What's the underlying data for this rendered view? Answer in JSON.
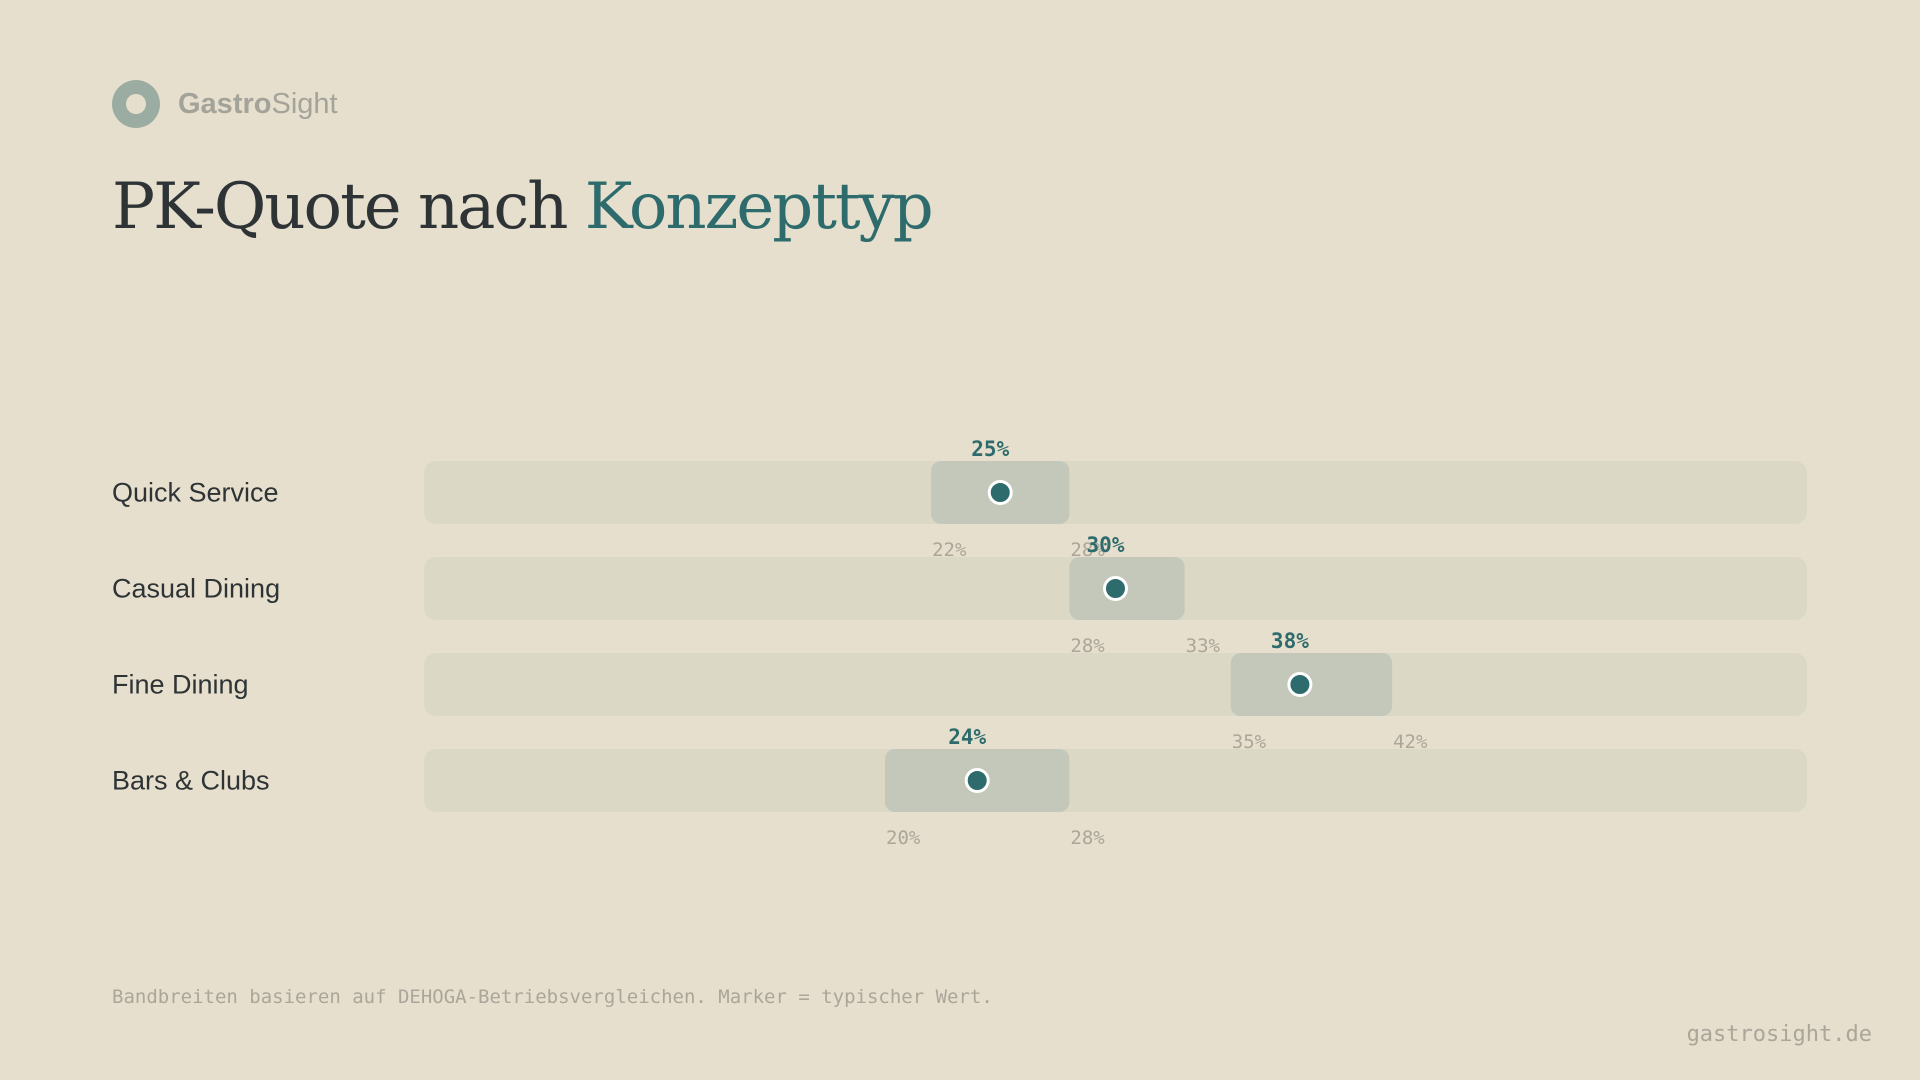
{
  "brand": {
    "name_bold": "Gastro",
    "name_light": "Sight"
  },
  "title": {
    "main": "PK-Quote nach ",
    "accent": "Konzepttyp"
  },
  "footnote": "Bandbreiten basieren auf DEHOGA-Betriebsvergleichen. Marker = typischer Wert.",
  "website": "gastrosight.de",
  "colors": {
    "background": "#e7dfcd",
    "track": "#dcd8c6",
    "band": "#c3c8bb",
    "marker": "#2e6b6c",
    "label": "#2e3436",
    "muted": "#aaa69a"
  },
  "chart_data": {
    "type": "range",
    "unit": "%",
    "categories": [
      "Quick Service",
      "Casual Dining",
      "Fine Dining",
      "Bars & Clubs"
    ],
    "ranges": [
      {
        "category": "Quick Service",
        "low": 22,
        "high": 28,
        "typical": 25,
        "low_label": "22%",
        "high_label": "28%",
        "typical_label": "25%"
      },
      {
        "category": "Casual Dining",
        "low": 28,
        "high": 33,
        "typical": 30,
        "low_label": "28%",
        "high_label": "33%",
        "typical_label": "30%"
      },
      {
        "category": "Fine Dining",
        "low": 35,
        "high": 42,
        "typical": 38,
        "low_label": "35%",
        "high_label": "42%",
        "typical_label": "38%"
      },
      {
        "category": "Bars & Clubs",
        "low": 20,
        "high": 28,
        "typical": 24,
        "low_label": "20%",
        "high_label": "28%",
        "typical_label": "24%"
      }
    ],
    "xlim": [
      0,
      60
    ]
  }
}
